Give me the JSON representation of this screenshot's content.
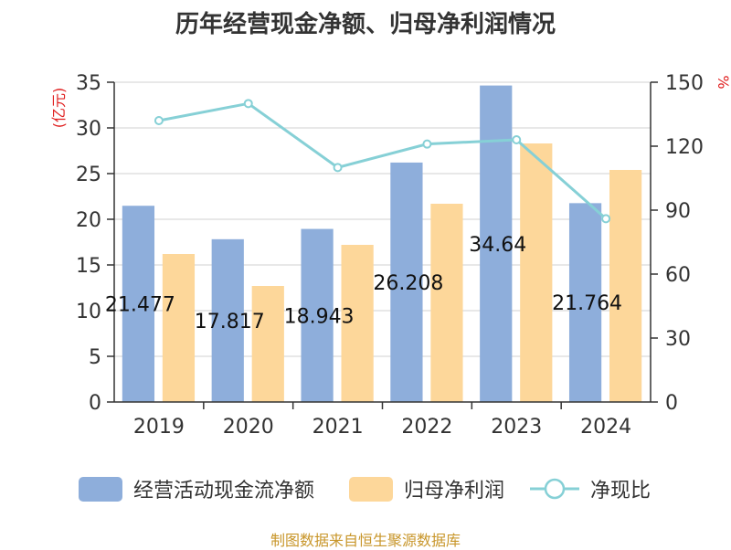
{
  "title": "历年经营现金净额、归母净利润情况",
  "source": "制图数据来自恒生聚源数据库",
  "colors": {
    "cash": "#8eaedb",
    "profit": "#fdd79a",
    "ratio": "#86d0d6",
    "axis": "#333333",
    "unit": "#e02020",
    "grid": "#d0d0d0",
    "source": "#c8962a"
  },
  "chart_data": {
    "type": "bar",
    "categories": [
      "2019",
      "2020",
      "2021",
      "2022",
      "2023",
      "2024"
    ],
    "series": [
      {
        "name": "经营活动现金流净额",
        "type": "bar",
        "axis": "left",
        "values": [
          21.477,
          17.817,
          18.943,
          26.208,
          34.64,
          21.764
        ]
      },
      {
        "name": "归母净利润",
        "type": "bar",
        "axis": "left",
        "values": [
          16.2,
          12.7,
          17.2,
          21.7,
          28.3,
          25.4
        ]
      },
      {
        "name": "净现比",
        "type": "line",
        "axis": "right",
        "values": [
          132,
          140,
          110,
          121,
          123,
          86
        ]
      }
    ],
    "bar_labels": [
      "21.477",
      "17.817",
      "18.943",
      "26.208",
      "34.64",
      "21.764"
    ],
    "y_left": {
      "label": "(亿元)",
      "min": 0,
      "max": 35,
      "ticks": [
        0,
        5,
        10,
        15,
        20,
        25,
        30,
        35
      ]
    },
    "y_right": {
      "label": "%",
      "min": 0,
      "max": 150,
      "ticks": [
        0,
        30,
        60,
        90,
        120,
        150
      ]
    },
    "legend_position": "bottom",
    "grid": true
  }
}
